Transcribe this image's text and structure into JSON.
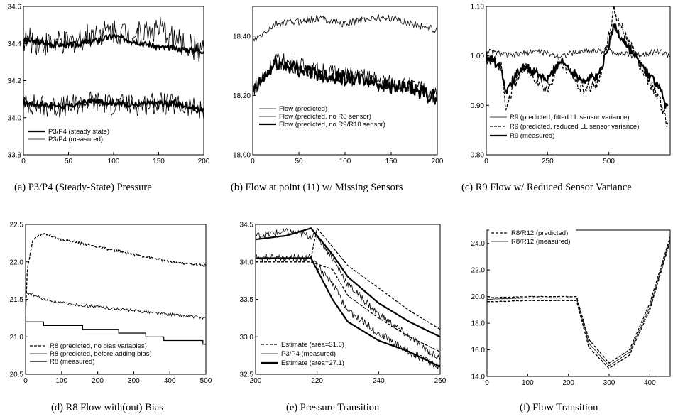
{
  "chart_data": [
    {
      "id": "a",
      "type": "line",
      "caption": "(a) P3/P4 (Steady-State) Pressure",
      "xlim": [
        0,
        200
      ],
      "ylim": [
        33.8,
        34.6
      ],
      "xticks": [
        0,
        50,
        100,
        150,
        200
      ],
      "yticks": [
        33.8,
        34.0,
        34.2,
        34.4,
        34.6
      ],
      "ytick_labels": [
        "33.8",
        "34.0",
        "34.2",
        "34.4",
        "34.6"
      ],
      "legend_position": "bottom-left",
      "series": [
        {
          "name": "P3/P4 (steady state)",
          "style": "thick",
          "x": [
            0,
            25,
            50,
            75,
            100,
            125,
            150,
            175,
            200
          ],
          "values": [
            34.42,
            34.4,
            34.39,
            34.41,
            34.44,
            34.41,
            34.38,
            34.37,
            34.36
          ]
        },
        {
          "name": "P3/P4 (measured)",
          "style": "thin",
          "x": [
            0,
            25,
            50,
            75,
            100,
            125,
            150,
            175,
            200
          ],
          "values": [
            34.42,
            34.4,
            34.4,
            34.45,
            34.47,
            34.45,
            34.48,
            34.4,
            34.36
          ]
        },
        {
          "name": "",
          "style": "thick",
          "x": [
            0,
            25,
            50,
            75,
            100,
            125,
            150,
            175,
            200
          ],
          "values": [
            34.08,
            34.07,
            34.06,
            34.09,
            34.08,
            34.07,
            34.08,
            34.07,
            34.04
          ]
        },
        {
          "name": "",
          "style": "thin",
          "x": [
            0,
            25,
            50,
            75,
            100,
            125,
            150,
            175,
            200
          ],
          "values": [
            34.08,
            34.06,
            34.06,
            34.09,
            34.07,
            34.07,
            34.08,
            34.06,
            34.04
          ]
        }
      ]
    },
    {
      "id": "b",
      "type": "line",
      "caption": "(b) Flow at point (11) w/ Missing Sensors",
      "xlim": [
        0,
        200
      ],
      "ylim": [
        18.0,
        18.5
      ],
      "xticks": [
        0,
        50,
        100,
        150,
        200
      ],
      "yticks": [
        18.0,
        18.2,
        18.4
      ],
      "ytick_labels": [
        "18.00",
        "18.20",
        "18.40"
      ],
      "legend_position": "bottom-left",
      "series": [
        {
          "name": "Flow (predicted)",
          "style": "thin",
          "x": [
            0,
            25,
            50,
            75,
            100,
            125,
            150,
            175,
            200
          ],
          "values": [
            18.38,
            18.44,
            18.45,
            18.46,
            18.44,
            18.46,
            18.46,
            18.44,
            18.42
          ]
        },
        {
          "name": "Flow (predicted, no R8 sensor)",
          "style": "thin",
          "x": [
            0,
            25,
            50,
            75,
            100,
            125,
            150,
            175,
            200
          ],
          "values": [
            18.22,
            18.32,
            18.3,
            18.28,
            18.27,
            18.26,
            18.24,
            18.23,
            18.2
          ]
        },
        {
          "name": "Flow (predicted, no R9/R10 sensor)",
          "style": "thick",
          "x": [
            0,
            25,
            50,
            75,
            100,
            125,
            150,
            175,
            200
          ],
          "values": [
            18.21,
            18.31,
            18.29,
            18.27,
            18.26,
            18.25,
            18.23,
            18.22,
            18.19
          ]
        }
      ]
    },
    {
      "id": "c",
      "type": "line",
      "caption": "(c) R9 Flow w/ Reduced Sensor Variance",
      "xlim": [
        0,
        750
      ],
      "ylim": [
        0.8,
        1.1
      ],
      "xticks": [
        0,
        250,
        500
      ],
      "yticks": [
        0.8,
        0.9,
        1.0,
        1.1
      ],
      "ytick_labels": [
        "0.80",
        "0.90",
        "1.00",
        "1.10"
      ],
      "legend_position": "bottom-left",
      "series": [
        {
          "name": "R9 (predicted, fitted LL sensor variance)",
          "style": "thin",
          "x": [
            0,
            100,
            200,
            300,
            400,
            500,
            600,
            700,
            750
          ],
          "values": [
            1.01,
            1.0,
            1.01,
            1.0,
            1.01,
            1.01,
            1.0,
            1.01,
            1.0
          ]
        },
        {
          "name": "R9 (predicted, reduced LL sensor variance)",
          "style": "dashed",
          "x": [
            0,
            60,
            80,
            150,
            250,
            300,
            400,
            460,
            520,
            560,
            650,
            700,
            740
          ],
          "values": [
            0.99,
            0.98,
            0.9,
            0.98,
            0.93,
            0.99,
            0.93,
            0.95,
            1.09,
            1.05,
            0.96,
            0.92,
            0.86
          ]
        },
        {
          "name": "R9 (measured)",
          "style": "thick",
          "x": [
            0,
            60,
            80,
            150,
            250,
            300,
            400,
            460,
            520,
            560,
            650,
            700,
            740
          ],
          "values": [
            1.0,
            0.98,
            0.93,
            0.98,
            0.95,
            0.99,
            0.95,
            0.96,
            1.06,
            1.03,
            0.97,
            0.94,
            0.89
          ]
        }
      ]
    },
    {
      "id": "d",
      "type": "line",
      "caption": "(d) R8 Flow with(out) Bias",
      "xlim": [
        0,
        500
      ],
      "ylim": [
        20.5,
        22.5
      ],
      "xticks": [
        0,
        100,
        200,
        300,
        400,
        500
      ],
      "yticks": [
        20.5,
        21.0,
        21.5,
        22.0,
        22.5
      ],
      "ytick_labels": [
        "20.5",
        "21.0",
        "21.5",
        "22.0",
        "22.5"
      ],
      "legend_position": "bottom-left",
      "series": [
        {
          "name": "R8 (predicted, no bias variables)",
          "style": "dashed",
          "x": [
            0,
            5,
            20,
            50,
            100,
            200,
            300,
            400,
            500
          ],
          "values": [
            21.3,
            21.9,
            22.3,
            22.38,
            22.3,
            22.2,
            22.1,
            22.0,
            21.95
          ]
        },
        {
          "name": "R8 (predicted, before adding bias)",
          "style": "thin",
          "x": [
            0,
            50,
            100,
            200,
            300,
            400,
            500
          ],
          "values": [
            21.6,
            21.5,
            21.45,
            21.4,
            21.35,
            21.3,
            21.25
          ]
        },
        {
          "name": "R8 (measured)",
          "style": "step",
          "x": [
            0,
            100,
            200,
            300,
            400,
            500
          ],
          "values": [
            21.2,
            21.15,
            21.1,
            21.05,
            20.95,
            20.92
          ]
        }
      ]
    },
    {
      "id": "e",
      "type": "line",
      "caption": "(e) Pressure Transition",
      "xlim": [
        200,
        260
      ],
      "ylim": [
        32.5,
        34.5
      ],
      "xticks": [
        200,
        220,
        240,
        260
      ],
      "yticks": [
        32.5,
        33.0,
        33.5,
        34.0,
        34.5
      ],
      "ytick_labels": [
        "32.5",
        "33.0",
        "33.5",
        "34.0",
        "34.5"
      ],
      "legend_position": "bottom-left",
      "series": [
        {
          "name": "Estimate (area=31.6)",
          "style": "dashed",
          "x": [
            200,
            210,
            218,
            220,
            225,
            230,
            240,
            250,
            260
          ],
          "values": [
            34.05,
            34.05,
            34.05,
            34.45,
            34.2,
            33.95,
            33.65,
            33.35,
            33.1
          ]
        },
        {
          "name": "P3/P4 (measured)",
          "style": "thin",
          "x": [
            200,
            210,
            218,
            220,
            225,
            230,
            240,
            250,
            260
          ],
          "values": [
            34.35,
            34.4,
            34.35,
            34.35,
            34.05,
            33.7,
            33.3,
            33.0,
            32.7
          ]
        },
        {
          "name": "Estimate (area=27.1)",
          "style": "thick",
          "x": [
            200,
            210,
            218,
            220,
            225,
            230,
            240,
            250,
            260
          ],
          "values": [
            34.3,
            34.35,
            34.45,
            34.35,
            34.1,
            33.8,
            33.45,
            33.2,
            33.0
          ]
        },
        {
          "name": "",
          "style": "dashed",
          "x": [
            200,
            210,
            218,
            225,
            230,
            240,
            250,
            260
          ],
          "values": [
            34.0,
            34.0,
            34.0,
            33.9,
            33.55,
            33.25,
            33.0,
            32.8
          ]
        },
        {
          "name": "",
          "style": "thin",
          "x": [
            200,
            210,
            218,
            225,
            230,
            240,
            250,
            260
          ],
          "values": [
            34.05,
            34.05,
            34.05,
            33.7,
            33.35,
            33.05,
            32.8,
            32.6
          ]
        },
        {
          "name": "",
          "style": "thick",
          "x": [
            200,
            210,
            218,
            225,
            230,
            240,
            250,
            260
          ],
          "values": [
            34.05,
            34.05,
            34.05,
            33.5,
            33.2,
            32.95,
            32.8,
            32.6
          ]
        }
      ]
    },
    {
      "id": "f",
      "type": "line",
      "caption": "(f) Flow Transition",
      "xlim": [
        0,
        450
      ],
      "ylim": [
        14.0,
        25.0
      ],
      "xticks": [
        0,
        100,
        200,
        300,
        400
      ],
      "yticks": [
        14.0,
        16.0,
        18.0,
        20.0,
        22.0,
        24.0
      ],
      "ytick_labels": [
        "14.0",
        "16.0",
        "18.0",
        "20.0",
        "22.0",
        "24.0"
      ],
      "legend_position": "top-left",
      "series": [
        {
          "name": "R8/R12 (predicted)",
          "style": "dashed",
          "x": [
            0,
            100,
            220,
            250,
            300,
            350,
            400,
            450
          ],
          "values": [
            19.9,
            20.0,
            20.0,
            16.8,
            15.0,
            16.0,
            19.5,
            24.5
          ]
        },
        {
          "name": "R8/R12 (measured)",
          "style": "thin",
          "x": [
            0,
            100,
            220,
            250,
            300,
            350,
            400,
            450
          ],
          "values": [
            19.8,
            19.9,
            19.9,
            16.5,
            14.8,
            15.8,
            19.2,
            24.3
          ]
        },
        {
          "name": "",
          "style": "dashed",
          "x": [
            0,
            100,
            220,
            250,
            300,
            350,
            400,
            450
          ],
          "values": [
            19.6,
            19.7,
            19.7,
            16.2,
            14.6,
            15.6,
            19.0,
            24.2
          ]
        }
      ]
    }
  ]
}
